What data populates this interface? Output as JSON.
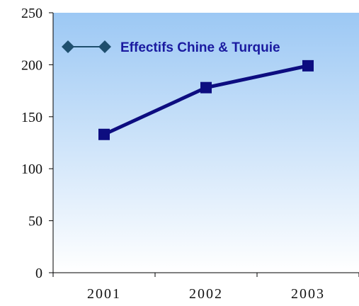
{
  "chart_data": {
    "type": "line",
    "categories": [
      "2001",
      "2002",
      "2003"
    ],
    "series": [
      {
        "name": "Effectifs Chine & Turquie",
        "values": [
          133,
          178,
          199
        ]
      }
    ],
    "ylim": [
      0,
      250
    ],
    "yticks": [
      "0",
      "50",
      "100",
      "150",
      "200",
      "250"
    ],
    "xticks": [
      "2001",
      "2002",
      "2003"
    ],
    "legend_position": "top",
    "grid": false,
    "colors": {
      "line": "#0d0d80",
      "marker": "#0d0d80",
      "legend_marker": "#1f4f6e",
      "plot_bg_top": "#9cc8f4",
      "plot_bg_bottom": "#ffffff",
      "axis": "#000000"
    }
  }
}
